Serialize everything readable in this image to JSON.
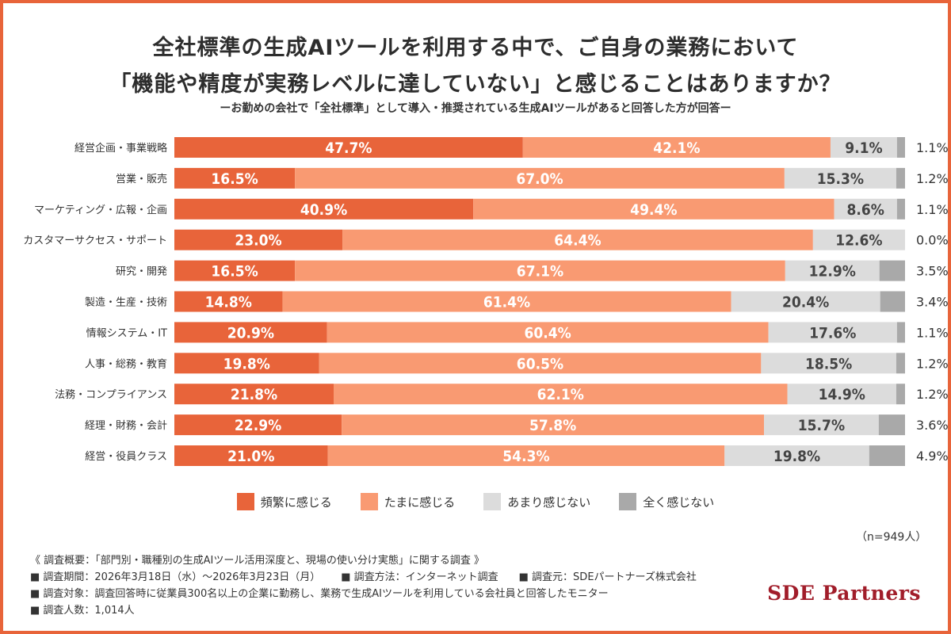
{
  "colors": {
    "frequent": "#e8643a",
    "sometimes": "#f99a72",
    "rarely": "#dcdcdc",
    "never": "#a9a9a9",
    "border": "#e8643a",
    "logo": "#a11d2a"
  },
  "chart_data": {
    "type": "bar",
    "orientation": "horizontal-stacked-100",
    "title": "全社標準の生成AIツールを利用する中で、ご自身の業務において",
    "title_line2": "「機能や精度が実務レベルに達していない」と感じることはありますか？",
    "subtitle": "ーお勤めの会社で「全社標準」として導入・推奨されている生成AIツールがあると回答した方が回答ー",
    "categories": [
      "経営企画・事業戦略",
      "営業・販売",
      "マーケティング・広報・企画",
      "カスタマーサクセス・サポート",
      "研究・開発",
      "製造・生産・技術",
      "情報システム・IT",
      "人事・総務・教育",
      "法務・コンプライアンス",
      "経理・財務・会計",
      "経営・役員クラス"
    ],
    "series": [
      {
        "name": "頻繁に感じる",
        "color": "#e8643a",
        "values": [
          47.7,
          16.5,
          40.9,
          23.0,
          16.5,
          14.8,
          20.9,
          19.8,
          21.8,
          22.9,
          21.0
        ],
        "labels": [
          "47.7%",
          "16.5%",
          "40.9%",
          "23.0%",
          "16.5%",
          "14.8%",
          "20.9%",
          "19.8%",
          "21.8%",
          "22.9%",
          "21.0%"
        ]
      },
      {
        "name": "たまに感じる",
        "color": "#f99a72",
        "values": [
          42.1,
          67.0,
          49.4,
          64.4,
          67.1,
          61.4,
          60.4,
          60.5,
          62.1,
          57.8,
          54.3
        ],
        "labels": [
          "42.1%",
          "67.0%",
          "49.4%",
          "64.4%",
          "67.1%",
          "61.4%",
          "60.4%",
          "60.5%",
          "62.1%",
          "57.8%",
          "54.3%"
        ]
      },
      {
        "name": "あまり感じない",
        "color": "#dcdcdc",
        "values": [
          9.1,
          15.3,
          8.6,
          12.6,
          12.9,
          20.4,
          17.6,
          18.5,
          14.9,
          15.7,
          19.8
        ],
        "labels": [
          "9.1%",
          "15.3%",
          "8.6%",
          "12.6%",
          "12.9%",
          "20.4%",
          "17.6%",
          "18.5%",
          "14.9%",
          "15.7%",
          "19.8%"
        ]
      },
      {
        "name": "全く感じない",
        "color": "#a9a9a9",
        "values": [
          1.1,
          1.2,
          1.1,
          0.0,
          3.5,
          3.4,
          1.1,
          1.2,
          1.2,
          3.6,
          4.9
        ],
        "labels": [
          "1.1%",
          "1.2%",
          "1.1%",
          "0.0%",
          "3.5%",
          "3.4%",
          "1.1%",
          "1.2%",
          "1.2%",
          "3.6%",
          "4.9%"
        ]
      }
    ],
    "xlim": [
      0,
      100
    ],
    "grid": false,
    "legend_position": "bottom",
    "n_label": "（n=949人）"
  },
  "survey": {
    "heading": "《 調査概要：「部門別・職種別の生成AIツール活用深度と、現場の使い分け実態」に関する調査 》",
    "period": "■ 調査期間：2026年3月18日（水）〜2026年3月23日（月）",
    "method": "■ 調査方法：インターネット調査",
    "source": "■ 調査元：SDEパートナーズ株式会社",
    "target": "■ 調査対象：調査回答時に従業員300名以上の企業に勤務し、業務で生成AIツールを利用している会社員と回答したモニター",
    "count": "■ 調査人数：1,014人"
  },
  "logo": "SDE Partners"
}
